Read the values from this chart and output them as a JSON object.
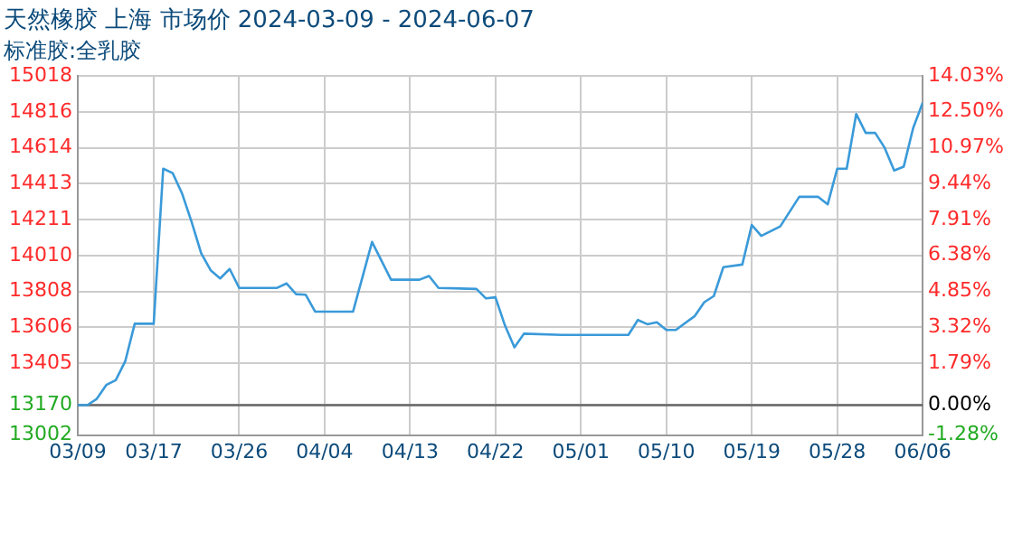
{
  "chart_data": {
    "type": "line",
    "title": "天然橡胶 上海 市场价 2024-03-09 - 2024-06-07",
    "subtitle": "标准胶:全乳胶",
    "x": [
      "2024-03-09",
      "2024-03-10",
      "2024-03-11",
      "2024-03-12",
      "2024-03-13",
      "2024-03-14",
      "2024-03-15",
      "2024-03-17",
      "2024-03-18",
      "2024-03-19",
      "2024-03-20",
      "2024-03-21",
      "2024-03-22",
      "2024-03-23",
      "2024-03-24",
      "2024-03-25",
      "2024-03-26",
      "2024-03-30",
      "2024-03-31",
      "2024-04-01",
      "2024-04-02",
      "2024-04-03",
      "2024-04-07",
      "2024-04-09",
      "2024-04-11",
      "2024-04-14",
      "2024-04-15",
      "2024-04-16",
      "2024-04-20",
      "2024-04-21",
      "2024-04-22",
      "2024-04-23",
      "2024-04-24",
      "2024-04-25",
      "2024-04-29",
      "2024-05-06",
      "2024-05-07",
      "2024-05-08",
      "2024-05-09",
      "2024-05-10",
      "2024-05-11",
      "2024-05-13",
      "2024-05-14",
      "2024-05-15",
      "2024-05-16",
      "2024-05-18",
      "2024-05-19",
      "2024-05-20",
      "2024-05-22",
      "2024-05-24",
      "2024-05-26",
      "2024-05-27",
      "2024-05-28",
      "2024-05-29",
      "2024-05-30",
      "2024-05-31",
      "2024-06-01",
      "2024-06-02",
      "2024-06-03",
      "2024-06-04",
      "2024-06-05",
      "2024-06-06"
    ],
    "series": [
      {
        "color": "#3a9ad9",
        "values": [
          13170,
          13170,
          13205,
          13283,
          13310,
          13416,
          13627,
          13627,
          14497,
          14472,
          14356,
          14197,
          14022,
          13927,
          13881,
          13934,
          13828,
          13828,
          13853,
          13793,
          13790,
          13695,
          13695,
          14086,
          13874,
          13874,
          13895,
          13828,
          13822,
          13769,
          13775,
          13617,
          13494,
          13571,
          13564,
          13564,
          13648,
          13624,
          13635,
          13592,
          13592,
          13670,
          13748,
          13782,
          13944,
          13959,
          14181,
          14120,
          14173,
          14339,
          14339,
          14297,
          14497,
          14497,
          14804,
          14698,
          14698,
          14614,
          14487,
          14508,
          14725,
          14867
        ]
      }
    ],
    "xlim": [
      "2024-03-09",
      "2024-06-06"
    ],
    "xticks": [
      {
        "value": "2024-03-09",
        "label": "03/09"
      },
      {
        "value": "2024-03-17",
        "label": "03/17"
      },
      {
        "value": "2024-03-26",
        "label": "03/26"
      },
      {
        "value": "2024-04-04",
        "label": "04/04"
      },
      {
        "value": "2024-04-13",
        "label": "04/13"
      },
      {
        "value": "2024-04-22",
        "label": "04/22"
      },
      {
        "value": "2024-05-01",
        "label": "05/01"
      },
      {
        "value": "2024-05-10",
        "label": "05/10"
      },
      {
        "value": "2024-05-19",
        "label": "05/19"
      },
      {
        "value": "2024-05-28",
        "label": "05/28"
      },
      {
        "value": "2024-06-06",
        "label": "06/06"
      }
    ],
    "ylim": [
      13002,
      15018
    ],
    "yticks": [
      13002,
      13170,
      13405,
      13606,
      13808,
      14010,
      14211,
      14413,
      14614,
      14816,
      15018
    ],
    "y2lim": [
      -1.28,
      14.03
    ],
    "y2ticks": [
      {
        "value": -1.28,
        "label": "-1.28%"
      },
      {
        "value": 0,
        "label": "0.00%"
      },
      {
        "value": 1.79,
        "label": "1.79%"
      },
      {
        "value": 3.32,
        "label": "3.32%"
      },
      {
        "value": 4.85,
        "label": "4.85%"
      },
      {
        "value": 6.38,
        "label": "6.38%"
      },
      {
        "value": 7.91,
        "label": "7.91%"
      },
      {
        "value": 9.44,
        "label": "9.44%"
      },
      {
        "value": 10.97,
        "label": "10.97%"
      },
      {
        "value": 12.5,
        "label": "12.50%"
      },
      {
        "value": 14.03,
        "label": "14.03%"
      }
    ],
    "ref_lines": [
      {
        "axis": "y",
        "value": 13170,
        "color": "#666666"
      }
    ],
    "grid": true,
    "legend": false,
    "marker": "none",
    "line_style": "solid"
  }
}
